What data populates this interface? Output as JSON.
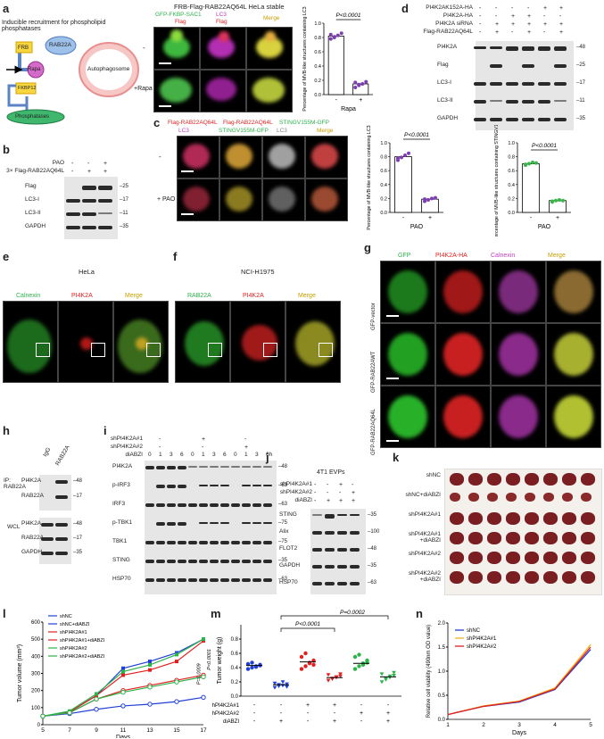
{
  "panels": {
    "a": {
      "letter": "a",
      "schematic_title": "Inducible recruitment for phospholipid phosphatases",
      "frb": "FRB",
      "rab22a": "RAB22A",
      "rapa": "Rapa",
      "fkbp12": "FKBP12",
      "autophagosome": "Autophagosome",
      "phosphatases": "Phosphatases",
      "image_title": "FRB-Flag-RAB22AQ64L HeLa stable",
      "col_labels": [
        "GFP-FKBP-SAC1\nFlag",
        "LC3\nFlag",
        "Merge"
      ],
      "col1_green": "GFP-FKBP-SAC1",
      "col1_red": "Flag",
      "col2_magenta": "LC3",
      "col2_red": "Flag",
      "col3": "Merge",
      "row_labels": [
        "-",
        "+Rapa"
      ],
      "pvalue": "P<0.0001",
      "ylabel": "Percentage of MVB-like structures containing LC3",
      "xlabel": "Rapa",
      "xticks": [
        "-",
        "+"
      ],
      "yticks": [
        "0.0",
        "0.2",
        "0.4",
        "0.6",
        "0.8",
        "1.0"
      ]
    },
    "b": {
      "letter": "b",
      "rows": [
        "PAO",
        "3× Flag-RAB22AQ64L"
      ],
      "row_marks": [
        [
          "-",
          "-",
          "+"
        ],
        [
          "-",
          "+",
          "+"
        ]
      ],
      "blots": [
        "Flag",
        "LC3-I",
        "LC3-II",
        "GAPDH"
      ],
      "mw": [
        "25",
        "17",
        "11",
        "35"
      ]
    },
    "c": {
      "letter": "c",
      "title_red": "Flag-RAB22AQ64L",
      "title_red2": "Flag-RAB22AQ64L",
      "title_green": "STINGV155M-GFP",
      "col_labels": [
        "LC3",
        "STINGV155M-GFP",
        "LC3",
        "Merge"
      ],
      "row_labels": [
        "-",
        "+ PAO"
      ],
      "chart1": {
        "pvalue": "P<0.0001",
        "ylabel": "Percentage of MVB-like structures containing LC3",
        "xlabel": "PAO"
      },
      "chart2": {
        "pvalue": "P<0.0001",
        "ylabel": "Percentage of MVB-like structures containing STINGV155M",
        "xlabel": "PAO"
      },
      "xticks": [
        "-",
        "+"
      ],
      "yticks": [
        "0.0",
        "0.2",
        "0.4",
        "0.6",
        "0.8",
        "1.0"
      ]
    },
    "d": {
      "letter": "d",
      "rows": [
        "PI4K2AK152A-HA",
        "PI4K2A-HA",
        "PI4K2A siRNA",
        "Flag-RAB22AQ64L"
      ],
      "row_marks": [
        [
          "-",
          "-",
          "-",
          "-",
          "+",
          "+"
        ],
        [
          "-",
          "-",
          "+",
          "+",
          "-",
          "-"
        ],
        [
          "-",
          "+",
          "+",
          "+",
          "+",
          "+"
        ],
        [
          "-",
          "+",
          "-",
          "+",
          "-",
          "+"
        ]
      ],
      "blots": [
        "PI4K2A",
        "Flag",
        "LC3-I",
        "LC3-II",
        "GAPDH"
      ],
      "mw": [
        "48",
        "25",
        "17",
        "11",
        "35"
      ]
    },
    "e": {
      "letter": "e",
      "title": "HeLa",
      "cols": [
        "Calnexin",
        "PI4K2A",
        "Merge"
      ]
    },
    "f": {
      "letter": "f",
      "title": "NCI-H1975",
      "cols": [
        "RAB22A",
        "PI4K2A",
        "Merge"
      ]
    },
    "g": {
      "letter": "g",
      "cols": [
        "GFP",
        "PI4K2A-HA",
        "Calnexin",
        "Merge"
      ],
      "rows": [
        "GFP-vector",
        "GFP-RAB22AWT",
        "GFP-RAB22AQ64L"
      ]
    },
    "h": {
      "letter": "h",
      "cols": [
        "IgG",
        "RAB22A"
      ],
      "groups": [
        "IP:\nRAB22A",
        "WCL"
      ],
      "ip_blots": [
        "PI4K2A",
        "RAB22A"
      ],
      "wcl_blots": [
        "PI4K2A",
        "RAB22A",
        "GAPDH"
      ],
      "mw": [
        "48",
        "17",
        "48",
        "17",
        "35"
      ]
    },
    "i": {
      "letter": "i",
      "rows": [
        "shPI4K2A#1",
        "shPI4K2A#2",
        "diABZI"
      ],
      "group_marks": [
        [
          "-",
          "+",
          "-"
        ],
        [
          "-",
          "-",
          "+"
        ]
      ],
      "times": [
        "0",
        "1",
        "3",
        "6",
        "0",
        "1",
        "3",
        "6",
        "0",
        "1",
        "3",
        "6h"
      ],
      "blots": [
        "PI4K2A",
        "p-IRF3",
        "IRF3",
        "p-TBK1",
        "TBK1",
        "STING",
        "HSP70"
      ],
      "mw": [
        "48",
        "63",
        "63",
        "75",
        "75",
        "35",
        "63"
      ]
    },
    "j": {
      "letter": "j",
      "title": "4T1 EVPs",
      "rows": [
        "shPI4K2A#1",
        "shPI4K2A#2",
        "diABZI"
      ],
      "row_marks": [
        [
          "-",
          "-",
          "+",
          "-"
        ],
        [
          "-",
          "-",
          "-",
          "+"
        ],
        [
          "-",
          "+",
          "+",
          "+"
        ]
      ],
      "blots": [
        "STING",
        "Alix",
        "FLOT2",
        "GAPDH",
        "HSP70"
      ],
      "mw": [
        "35",
        "100",
        "48",
        "35",
        "63"
      ]
    },
    "k": {
      "letter": "k",
      "rows": [
        "shNC",
        "shNC+diABZI",
        "shPI4K2A#1",
        "shPI4K2A#1\n+diABZI",
        "shPI4K2A#2",
        "shPI4K2A#2\n+diABZI"
      ]
    },
    "l": {
      "letter": "l",
      "p1": "P=0.0009",
      "p2": "P<0.0001"
    },
    "m": {
      "letter": "m",
      "p1": "P<0.0001",
      "p2": "P=0.0002",
      "rows": [
        "shPI4K2A#1",
        "shPI4K2A#2",
        "diABZI"
      ],
      "row_marks": [
        [
          "-",
          "-",
          "+",
          "+",
          "-",
          "-"
        ],
        [
          "-",
          "-",
          "-",
          "-",
          "+",
          "+"
        ],
        [
          "-",
          "+",
          "-",
          "+",
          "-",
          "+"
        ]
      ]
    },
    "n": {
      "letter": "n"
    }
  },
  "chart_data": [
    {
      "id": "a-bar",
      "type": "bar",
      "categories": [
        "-",
        "+"
      ],
      "values": [
        0.82,
        0.15
      ],
      "ylim": [
        0,
        1.0
      ],
      "ylabel": "Percentage of MVB-like structures containing LC3",
      "xlabel": "Rapa",
      "points": [
        [
          0.78,
          0.8,
          0.83,
          0.86,
          0.84,
          0.81
        ],
        [
          0.1,
          0.13,
          0.15,
          0.18,
          0.17,
          0.14
        ]
      ],
      "colors": [
        "#7b3fb0",
        "#7b3fb0"
      ]
    },
    {
      "id": "c-bar1",
      "type": "bar",
      "categories": [
        "-",
        "+"
      ],
      "values": [
        0.8,
        0.19
      ],
      "ylim": [
        0,
        1.0
      ],
      "ylabel": "Percentage of MVB-like structures containing LC3",
      "xlabel": "PAO",
      "points": [
        [
          0.75,
          0.79,
          0.82,
          0.85,
          0.78
        ],
        [
          0.16,
          0.18,
          0.2,
          0.21,
          0.19
        ]
      ],
      "colors": [
        "#7b3fb0",
        "#7b3fb0"
      ]
    },
    {
      "id": "c-bar2",
      "type": "bar",
      "categories": [
        "-",
        "+"
      ],
      "values": [
        0.7,
        0.17
      ],
      "ylim": [
        0,
        1.0
      ],
      "ylabel": "Percentage of MVB-like structures containing STINGV155M",
      "xlabel": "PAO",
      "points": [
        [
          0.68,
          0.7,
          0.72,
          0.71,
          0.69
        ],
        [
          0.15,
          0.17,
          0.18,
          0.17,
          0.16
        ]
      ],
      "colors": [
        "#3bb54a",
        "#3bb54a"
      ]
    },
    {
      "id": "l-line",
      "type": "line",
      "x": [
        5,
        7,
        9,
        11,
        13,
        15,
        17
      ],
      "xlabel": "Days",
      "ylabel": "Tumor volume (mm³)",
      "ylim": [
        0,
        600
      ],
      "yticks": [
        0,
        100,
        200,
        300,
        400,
        500,
        600
      ],
      "series": [
        {
          "name": "shNC",
          "color": "#1f3fd6",
          "values": [
            50,
            75,
            170,
            330,
            370,
            420,
            500
          ],
          "marker": "square"
        },
        {
          "name": "shNC+diABZI",
          "color": "#1f3fd6",
          "values": [
            50,
            65,
            90,
            110,
            120,
            135,
            160
          ],
          "marker": "circle"
        },
        {
          "name": "shPI4K2A#1",
          "color": "#e02020",
          "values": [
            50,
            75,
            170,
            290,
            320,
            370,
            490
          ],
          "marker": "square"
        },
        {
          "name": "shPI4K2A#1+diABZI",
          "color": "#e02020",
          "values": [
            50,
            70,
            150,
            200,
            230,
            260,
            290
          ],
          "marker": "circle"
        },
        {
          "name": "shPI4K2A#2",
          "color": "#2db34a",
          "values": [
            50,
            80,
            180,
            310,
            350,
            410,
            500
          ],
          "marker": "square"
        },
        {
          "name": "shPI4K2A#2+diABZI",
          "color": "#2db34a",
          "values": [
            50,
            70,
            150,
            190,
            220,
            250,
            280
          ],
          "marker": "circle"
        }
      ]
    },
    {
      "id": "m-scatter",
      "type": "scatter",
      "ylabel": "Tumor weight (g)",
      "ylim": [
        0,
        1.0
      ],
      "yticks": [
        0.0,
        0.2,
        0.4,
        0.6,
        0.8
      ],
      "groups": [
        {
          "color": "#1f3fd6",
          "mean": 0.43,
          "points": [
            0.38,
            0.4,
            0.42,
            0.44,
            0.45,
            0.47,
            0.41,
            0.43
          ]
        },
        {
          "color": "#1f3fd6",
          "mean": 0.16,
          "points": [
            0.12,
            0.14,
            0.15,
            0.17,
            0.18,
            0.16,
            0.2,
            0.13
          ]
        },
        {
          "color": "#e02020",
          "mean": 0.48,
          "points": [
            0.38,
            0.42,
            0.46,
            0.5,
            0.55,
            0.6,
            0.47,
            0.44
          ]
        },
        {
          "color": "#e02020",
          "mean": 0.26,
          "points": [
            0.22,
            0.24,
            0.26,
            0.28,
            0.3,
            0.25,
            0.27,
            0.31
          ]
        },
        {
          "color": "#2db34a",
          "mean": 0.46,
          "points": [
            0.38,
            0.42,
            0.46,
            0.5,
            0.55,
            0.58,
            0.44,
            0.47
          ]
        },
        {
          "color": "#2db34a",
          "mean": 0.27,
          "points": [
            0.2,
            0.23,
            0.26,
            0.29,
            0.31,
            0.25,
            0.28,
            0.33
          ]
        }
      ]
    },
    {
      "id": "n-line",
      "type": "line",
      "x": [
        1,
        2,
        3,
        4,
        5
      ],
      "xlabel": "Days",
      "ylabel": "Relative cell viability (490nm OD value)",
      "ylim": [
        0,
        2.0
      ],
      "yticks": [
        0.0,
        0.5,
        1.0,
        1.5,
        2.0
      ],
      "series": [
        {
          "name": "shNC",
          "color": "#1f3fd6",
          "values": [
            0.1,
            0.27,
            0.36,
            0.62,
            1.45
          ]
        },
        {
          "name": "shPI4K2A#1",
          "color": "#f2b318",
          "values": [
            0.1,
            0.28,
            0.38,
            0.65,
            1.55
          ]
        },
        {
          "name": "shPI4K2A#2",
          "color": "#e02020",
          "values": [
            0.1,
            0.27,
            0.37,
            0.63,
            1.5
          ]
        }
      ]
    }
  ]
}
